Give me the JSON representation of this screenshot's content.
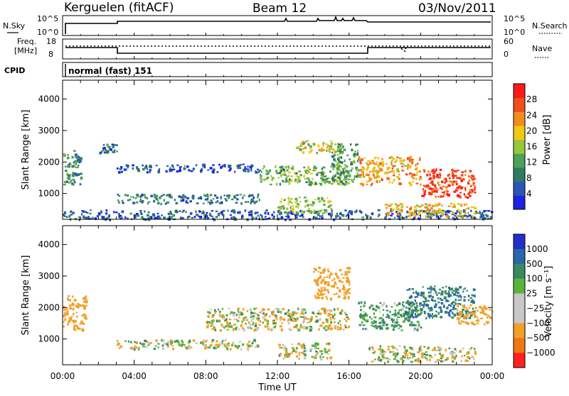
{
  "header": {
    "station": "Kerguelen (fitACF)",
    "beam": "Beam 12",
    "date": "03/Nov/2011"
  },
  "status": {
    "nsky_label": "N.Sky",
    "nsky_ticks": [
      "10^5",
      "10^0"
    ],
    "nsearch_label": "N.Search",
    "nsearch_ticks": [
      "10^5",
      "10^0"
    ],
    "freq_label_1": "Freq.",
    "freq_label_2": "[MHz]",
    "freq_ticks": [
      "18",
      "8"
    ],
    "nave_label": "Nave",
    "nave_ticks": [
      "60",
      "0"
    ],
    "cpid_label": "CPID",
    "cpid_value": "normal (fast) 151"
  },
  "colors": {
    "power_scale": [
      "#1d22e6",
      "#2a55b4",
      "#2f7b62",
      "#4ea05a",
      "#96c83c",
      "#f0c814",
      "#f28c1e",
      "#f05018",
      "#ff1a1a"
    ],
    "velocity_scale": [
      "#2030c8",
      "#2b66a8",
      "#3a8a60",
      "#5ab43c",
      "#c8c8c8",
      "#c8c8c8",
      "#f0a028",
      "#f07814",
      "#ff2020"
    ],
    "ground_scatter": "#c8c8c8"
  },
  "chart_data": [
    {
      "type": "heatmap",
      "panel": "power",
      "ylabel": "Slant Range [km]",
      "ylim": [
        180,
        4600
      ],
      "yticks": [
        "1000",
        "2000",
        "3000",
        "4000"
      ],
      "xlim": [
        0,
        24
      ],
      "xticks": [
        "00:00",
        "04:00",
        "08:00",
        "12:00",
        "16:00",
        "20:00",
        "00:00"
      ],
      "colorbar": {
        "label": "Power [dB]",
        "ticks": [
          "4",
          "8",
          "12",
          "16",
          "20",
          "24",
          "28"
        ],
        "range": [
          0,
          32
        ]
      },
      "regions": [
        {
          "t": [
            0.0,
            1.0
          ],
          "r": [
            1300,
            2400
          ],
          "value": 10
        },
        {
          "t": [
            2.0,
            3.0
          ],
          "r": [
            2300,
            2600
          ],
          "value": 8
        },
        {
          "t": [
            3.0,
            11.0
          ],
          "r": [
            1700,
            1950
          ],
          "value": 5
        },
        {
          "t": [
            3.0,
            11.0
          ],
          "r": [
            700,
            1000
          ],
          "value": 8
        },
        {
          "t": [
            0.0,
            24.0
          ],
          "r": [
            200,
            500
          ],
          "value": 6
        },
        {
          "t": [
            11.0,
            16.0
          ],
          "r": [
            1300,
            1900
          ],
          "value": 14
        },
        {
          "t": [
            13.0,
            15.5
          ],
          "r": [
            2300,
            2700
          ],
          "value": 18
        },
        {
          "t": [
            12.0,
            15.0
          ],
          "r": [
            400,
            900
          ],
          "value": 16
        },
        {
          "t": [
            15.0,
            16.5
          ],
          "r": [
            1400,
            2600
          ],
          "value": 12
        },
        {
          "t": [
            16.5,
            20.0
          ],
          "r": [
            1300,
            2200
          ],
          "value": 22
        },
        {
          "t": [
            20.0,
            23.0
          ],
          "r": [
            900,
            1800
          ],
          "value": 28
        },
        {
          "t": [
            18.0,
            23.0
          ],
          "r": [
            300,
            700
          ],
          "value": 20
        }
      ]
    },
    {
      "type": "heatmap",
      "panel": "velocity",
      "ylabel": "Slant Range [km]",
      "ylim": [
        180,
        4600
      ],
      "yticks": [
        "1000",
        "2000",
        "3000",
        "4000"
      ],
      "xlabel": "Time UT",
      "xlim": [
        0,
        24
      ],
      "xticks": [
        "00:00",
        "04:00",
        "08:00",
        "12:00",
        "16:00",
        "20:00",
        "00:00"
      ],
      "colorbar": {
        "label": "Velocity [m s⁻¹]",
        "ticks": [
          "1000",
          "500",
          "100",
          "25",
          "−25",
          "−100",
          "−500",
          "−1000"
        ]
      },
      "regions": [
        {
          "t": [
            0.0,
            1.3
          ],
          "r": [
            1300,
            2400
          ],
          "value": -300
        },
        {
          "t": [
            3.0,
            11.0
          ],
          "r": [
            700,
            1000
          ],
          "value": 0
        },
        {
          "t": [
            8.0,
            16.0
          ],
          "r": [
            1300,
            2000
          ],
          "value": 0
        },
        {
          "t": [
            12.0,
            15.0
          ],
          "r": [
            400,
            900
          ],
          "value": 0
        },
        {
          "t": [
            14.0,
            16.0
          ],
          "r": [
            2300,
            3300
          ],
          "value": -200
        },
        {
          "t": [
            16.5,
            20.0
          ],
          "r": [
            1300,
            2200
          ],
          "value": 150
        },
        {
          "t": [
            19.0,
            23.0
          ],
          "r": [
            1700,
            2700
          ],
          "value": 500
        },
        {
          "t": [
            22.0,
            24.0
          ],
          "r": [
            1500,
            2100
          ],
          "value": -300
        },
        {
          "t": [
            17.0,
            23.0
          ],
          "r": [
            300,
            800
          ],
          "value": 0
        }
      ]
    }
  ]
}
